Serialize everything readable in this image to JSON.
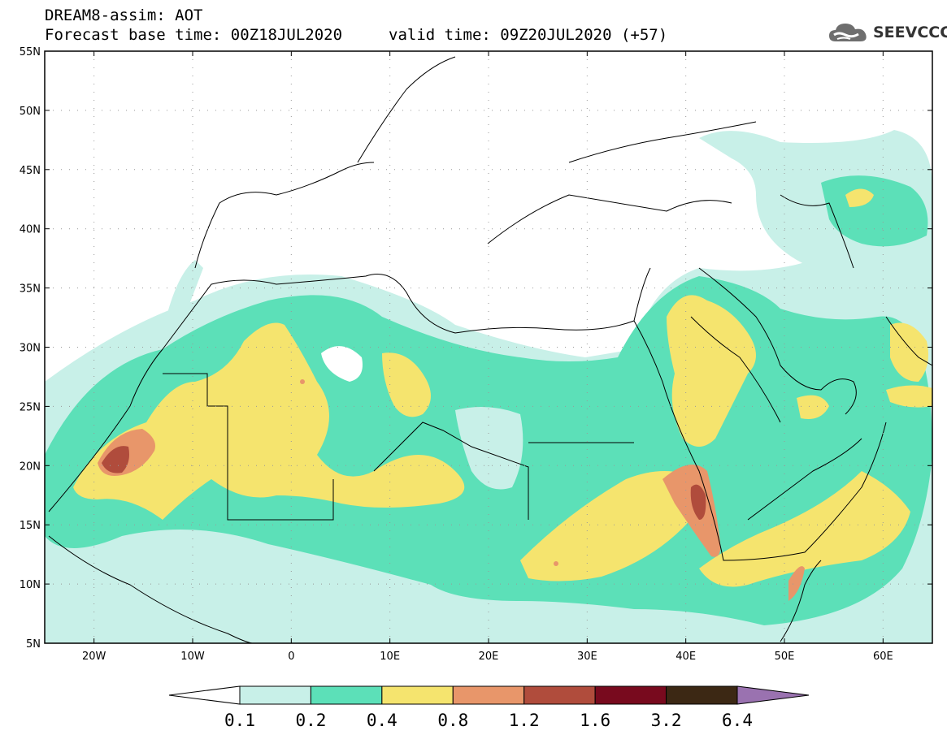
{
  "header": {
    "title_line1": "DREAM8-assim: AOT",
    "title_line2": "Forecast base time: 00Z18JUL2020",
    "valid_time": "valid time: 09Z20JUL2020 (+57)"
  },
  "logo": {
    "text": "SEEVCCC",
    "icon": "cloud-icon"
  },
  "map": {
    "lat_labels": [
      "55N",
      "50N",
      "45N",
      "40N",
      "35N",
      "30N",
      "25N",
      "20N",
      "15N",
      "10N",
      "5N"
    ],
    "lon_labels": [
      "20W",
      "10W",
      "0",
      "10E",
      "20E",
      "30E",
      "40E",
      "50E",
      "60E"
    ],
    "lon_range": [
      -25,
      65
    ],
    "lat_range": [
      5,
      55
    ]
  },
  "colorbar": {
    "levels": [
      "0.1",
      "0.2",
      "0.4",
      "0.8",
      "1.2",
      "1.6",
      "3.2",
      "6.4"
    ],
    "colors": [
      "#c8f0e8",
      "#5ce0b8",
      "#f5e46e",
      "#e8966a",
      "#b04c3c",
      "#780a1e",
      "#3c2814",
      "#9a72b0"
    ],
    "low_end_color": "#ffffff"
  }
}
